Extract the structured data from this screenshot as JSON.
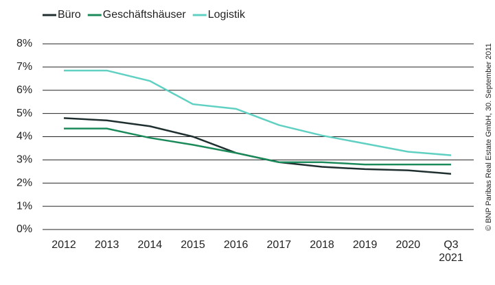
{
  "chart_data": {
    "type": "line",
    "categories": [
      "2012",
      "2013",
      "2014",
      "2015",
      "2016",
      "2017",
      "2018",
      "2019",
      "2020",
      "Q3 2021"
    ],
    "series": [
      {
        "name": "Büro",
        "color": "#1f2e2e",
        "values": [
          4.8,
          4.7,
          4.45,
          4.0,
          3.3,
          2.9,
          2.7,
          2.6,
          2.55,
          2.4
        ]
      },
      {
        "name": "Geschäftshäuser",
        "color": "#1b8a5a",
        "values": [
          4.35,
          4.35,
          3.95,
          3.65,
          3.3,
          2.9,
          2.9,
          2.8,
          2.8,
          2.8
        ]
      },
      {
        "name": "Logistik",
        "color": "#5fd0c2",
        "values": [
          6.85,
          6.85,
          6.4,
          5.4,
          5.2,
          4.5,
          4.05,
          3.7,
          3.35,
          3.2
        ]
      }
    ],
    "ylim": [
      0,
      8
    ],
    "yticks": [
      {
        "value": 0,
        "label": "0%"
      },
      {
        "value": 1,
        "label": "1%"
      },
      {
        "value": 2,
        "label": "2%"
      },
      {
        "value": 3,
        "label": "3%"
      },
      {
        "value": 4,
        "label": "4%"
      },
      {
        "value": 5,
        "label": "5%"
      },
      {
        "value": 6,
        "label": "6%"
      },
      {
        "value": 7,
        "label": "7%"
      },
      {
        "value": 8,
        "label": "8%"
      }
    ],
    "grid": true,
    "source": "© BNP Paribas Real Estate GmbH, 30. September 2011"
  }
}
